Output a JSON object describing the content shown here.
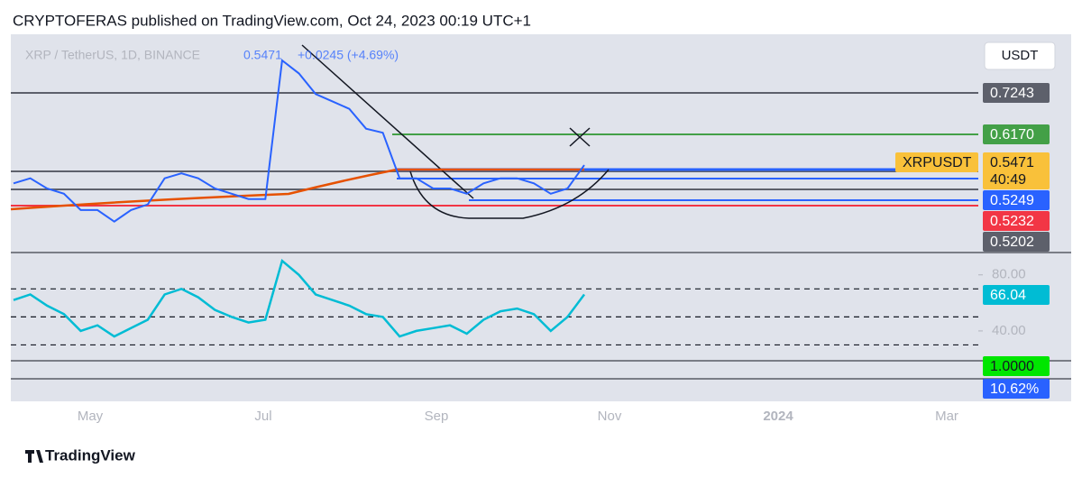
{
  "header": "CRYPTOFERAS published on TradingView.com, Oct 24, 2023 00:19 UTC+1",
  "legend": {
    "symbol": "XRP / TetherUS, 1D, BINANCE",
    "price": "0.5471",
    "change": "+0.0245 (+4.69%)"
  },
  "currency_button": "USDT",
  "price_labels": [
    {
      "text": "0.7243",
      "color": "#5d606b"
    },
    {
      "text": "0.6170",
      "color": "#43a047"
    },
    {
      "text": "XRPUSDT",
      "color": "#f9c13a"
    },
    {
      "text": "0.5471",
      "color": "#f9c13a"
    },
    {
      "text": "40:49",
      "color": "#f9c13a"
    },
    {
      "text": "0.5249",
      "color": "#2962ff"
    },
    {
      "text": "0.5232",
      "color": "#f23645"
    },
    {
      "text": "0.5202",
      "color": "#5d606b"
    }
  ],
  "indicator_labels": [
    {
      "text": "66.04",
      "color": "#00bcd4"
    },
    {
      "text": "1.0000",
      "color": "#00e600"
    },
    {
      "text": "10.62%",
      "color": "#2962ff"
    }
  ],
  "footer": "TradingView",
  "chart_data": {
    "type": "line",
    "values": [
      0.51,
      0.52,
      0.5,
      0.49,
      0.46,
      0.46,
      0.44,
      0.46,
      0.47,
      0.52,
      0.53,
      0.52,
      0.5,
      0.49,
      0.48,
      0.48,
      0.82,
      0.78,
      0.72,
      0.7,
      0.68,
      0.63,
      0.62,
      0.52,
      0.52,
      0.5,
      0.5,
      0.49,
      0.51,
      0.52,
      0.52,
      0.51,
      0.49,
      0.5,
      0.5471
    ],
    "color": "#2962ff",
    "ylim": [
      0.42,
      0.92
    ],
    "log_scale": true,
    "xticks": [
      "May",
      "Jul",
      "Sep",
      "Nov",
      "2024",
      "Mar"
    ],
    "rsi": {
      "values": [
        62,
        66,
        58,
        52,
        40,
        44,
        36,
        42,
        48,
        66,
        70,
        64,
        55,
        50,
        46,
        48,
        90,
        80,
        66,
        62,
        58,
        52,
        50,
        36,
        40,
        42,
        44,
        38,
        48,
        54,
        56,
        52,
        40,
        50,
        66.04
      ],
      "color": "#00bcd4",
      "ylim": [
        20,
        94
      ],
      "yticks": [
        {
          "value": 80,
          "label": "80.00"
        },
        {
          "value": 40,
          "label": "40.00"
        }
      ],
      "levels": [
        70,
        50,
        30
      ]
    }
  }
}
